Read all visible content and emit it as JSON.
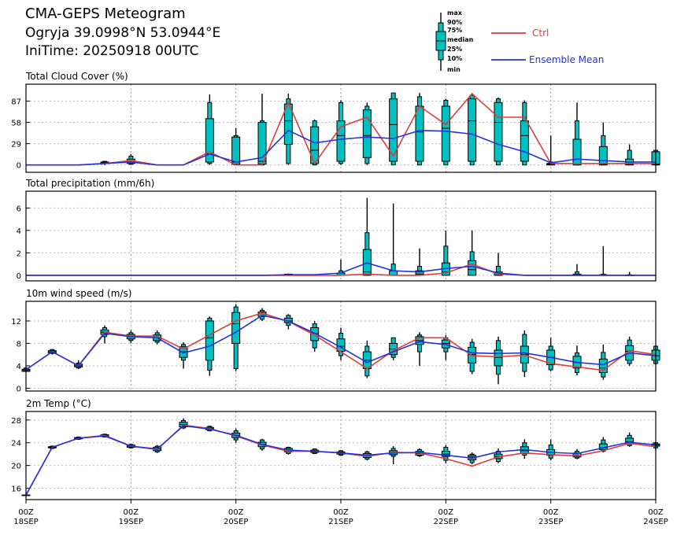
{
  "header": {
    "title": "CMA-GEPS Meteogram",
    "location": "Ogryja 39.0998°N 53.0944°E",
    "init_time": "IniTime: 20250918 00UTC"
  },
  "legend": {
    "box_labels": [
      "max",
      "90%",
      "75%",
      "median",
      "25%",
      "10%",
      "min"
    ],
    "ctrl_label": "Ctrl",
    "mean_label": "Ensemble Mean",
    "ctrl_color": "#e03c3c",
    "mean_color": "#2233dd",
    "box_color": "#00c0c0"
  },
  "x_axis": {
    "tick_hours": [
      0,
      24,
      48,
      72,
      96,
      120,
      144
    ],
    "tick_labels": [
      {
        "top": "00Z",
        "bottom": "18SEP"
      },
      {
        "top": "00Z",
        "bottom": "19SEP"
      },
      {
        "top": "00Z",
        "bottom": "20SEP"
      },
      {
        "top": "00Z",
        "bottom": "21SEP"
      },
      {
        "top": "00Z",
        "bottom": "22SEP"
      },
      {
        "top": "00Z",
        "bottom": "23SEP"
      },
      {
        "top": "00Z",
        "bottom": "24SEP"
      }
    ],
    "range_hours": [
      0,
      144
    ]
  },
  "chart_data": [
    {
      "type": "box",
      "title": "Total Cloud Cover (%)",
      "ylim": [
        -10,
        110
      ],
      "yticks": [
        0,
        29,
        58,
        87
      ],
      "hours": [
        0,
        6,
        12,
        18,
        24,
        30,
        36,
        42,
        48,
        54,
        60,
        66,
        72,
        78,
        84,
        90,
        96,
        102,
        108,
        114,
        120,
        126,
        132,
        138,
        144
      ],
      "boxes": [
        [
          0,
          0,
          0,
          0,
          0,
          0,
          0
        ],
        [
          0,
          0,
          0,
          0,
          0,
          0,
          0
        ],
        [
          0,
          0,
          0,
          0,
          0,
          0,
          0
        ],
        [
          0,
          2,
          2,
          3,
          4,
          5,
          5
        ],
        [
          0,
          1,
          2,
          4,
          8,
          12,
          15
        ],
        [
          0,
          0,
          0,
          0,
          0,
          0,
          0
        ],
        [
          0,
          0,
          0,
          0,
          0,
          0,
          0
        ],
        [
          0,
          2,
          4,
          15,
          63,
          85,
          96
        ],
        [
          0,
          0,
          1,
          4,
          38,
          40,
          50
        ],
        [
          0,
          0,
          1,
          5,
          58,
          60,
          97
        ],
        [
          0,
          2,
          28,
          60,
          83,
          90,
          97
        ],
        [
          0,
          0,
          2,
          20,
          52,
          60,
          62
        ],
        [
          0,
          2,
          5,
          40,
          60,
          85,
          88
        ],
        [
          0,
          2,
          10,
          40,
          75,
          80,
          85
        ],
        [
          0,
          0,
          5,
          55,
          90,
          98,
          98
        ],
        [
          0,
          0,
          5,
          45,
          80,
          93,
          98
        ],
        [
          0,
          0,
          5,
          50,
          80,
          88,
          90
        ],
        [
          0,
          0,
          5,
          60,
          90,
          95,
          98
        ],
        [
          0,
          0,
          5,
          58,
          85,
          90,
          92
        ],
        [
          0,
          0,
          5,
          40,
          60,
          85,
          88
        ],
        [
          0,
          0,
          0,
          1,
          2,
          4,
          40
        ],
        [
          0,
          0,
          0,
          2,
          35,
          60,
          85
        ],
        [
          0,
          0,
          0,
          1,
          25,
          40,
          58
        ],
        [
          0,
          0,
          0,
          1,
          8,
          20,
          28
        ],
        [
          0,
          0,
          0,
          1,
          18,
          20,
          20
        ]
      ],
      "ctrl": [
        0,
        0,
        0,
        2,
        6,
        0,
        0,
        18,
        0,
        0,
        85,
        2,
        52,
        65,
        12,
        80,
        55,
        97,
        65,
        65,
        2,
        2,
        2,
        2,
        2
      ],
      "mean": [
        0,
        0,
        0,
        2,
        4,
        0,
        0,
        15,
        4,
        10,
        47,
        30,
        35,
        38,
        36,
        47,
        46,
        42,
        28,
        18,
        3,
        8,
        6,
        4,
        4
      ]
    },
    {
      "type": "box",
      "title": "Total precipitation (mm/6h)",
      "ylim": [
        -0.5,
        7.5
      ],
      "yticks": [
        0,
        2,
        4,
        6
      ],
      "hours": [
        0,
        6,
        12,
        18,
        24,
        30,
        36,
        42,
        48,
        54,
        60,
        66,
        72,
        78,
        84,
        90,
        96,
        102,
        108,
        114,
        120,
        126,
        132,
        138,
        144
      ],
      "boxes": [
        [
          0,
          0,
          0,
          0,
          0,
          0,
          0
        ],
        [
          0,
          0,
          0,
          0,
          0,
          0,
          0
        ],
        [
          0,
          0,
          0,
          0,
          0,
          0,
          0
        ],
        [
          0,
          0,
          0,
          0,
          0,
          0,
          0
        ],
        [
          0,
          0,
          0,
          0,
          0,
          0,
          0
        ],
        [
          0,
          0,
          0,
          0,
          0,
          0,
          0
        ],
        [
          0,
          0,
          0,
          0,
          0,
          0,
          0
        ],
        [
          0,
          0,
          0,
          0,
          0,
          0,
          0
        ],
        [
          0,
          0,
          0,
          0,
          0,
          0,
          0
        ],
        [
          0,
          0,
          0,
          0,
          0,
          0,
          0
        ],
        [
          0,
          0,
          0,
          0,
          0.1,
          0.1,
          0.15
        ],
        [
          0,
          0,
          0,
          0,
          0.05,
          0.05,
          0.1
        ],
        [
          0,
          0,
          0,
          0,
          0.2,
          0.4,
          1.4
        ],
        [
          0,
          0,
          0,
          0.3,
          2.3,
          3.8,
          6.9
        ],
        [
          0,
          0,
          0,
          0,
          0.4,
          1,
          6.4
        ],
        [
          0,
          0,
          0,
          0.1,
          0.4,
          0.8,
          2.4
        ],
        [
          0,
          0,
          0,
          0.3,
          1.1,
          2.6,
          4
        ],
        [
          0,
          0,
          0,
          0.5,
          1.3,
          2.1,
          4
        ],
        [
          0,
          0,
          0,
          0,
          0.3,
          0.8,
          2
        ],
        [
          0,
          0,
          0,
          0,
          0,
          0,
          0
        ],
        [
          0,
          0,
          0,
          0,
          0,
          0,
          0
        ],
        [
          0,
          0,
          0,
          0,
          0.1,
          0.3,
          1
        ],
        [
          0,
          0,
          0,
          0,
          0.05,
          0.1,
          2.6
        ],
        [
          0,
          0,
          0,
          0,
          0,
          0.05,
          0.3
        ],
        [
          0,
          0,
          0,
          0,
          0,
          0,
          0
        ]
      ],
      "ctrl": [
        0,
        0,
        0,
        0,
        0,
        0,
        0,
        0,
        0,
        0,
        0,
        0,
        0,
        0.1,
        0,
        0,
        0.2,
        1,
        0.1,
        0,
        0,
        0,
        0,
        0,
        0
      ],
      "mean": [
        0,
        0,
        0,
        0,
        0,
        0,
        0,
        0,
        0,
        0,
        0.05,
        0.05,
        0.2,
        1.1,
        0.4,
        0.3,
        0.6,
        0.8,
        0.2,
        0,
        0,
        0,
        0,
        0,
        0
      ]
    },
    {
      "type": "box",
      "title": "10m wind speed (m/s)",
      "ylim": [
        -0.5,
        15.5
      ],
      "yticks": [
        0,
        4,
        8,
        12
      ],
      "hours": [
        0,
        6,
        12,
        18,
        24,
        30,
        36,
        42,
        48,
        54,
        60,
        66,
        72,
        78,
        84,
        90,
        96,
        102,
        108,
        114,
        120,
        126,
        132,
        138,
        144
      ],
      "boxes": [
        [
          3,
          3,
          3,
          3.2,
          3.4,
          3.6,
          3.8
        ],
        [
          6,
          6.2,
          6.3,
          6.5,
          6.7,
          6.9,
          7
        ],
        [
          3.4,
          3.6,
          3.8,
          4,
          4.3,
          4.5,
          5
        ],
        [
          8,
          9.2,
          9.6,
          10,
          10.4,
          10.8,
          11.2
        ],
        [
          8,
          8.5,
          8.8,
          9.2,
          9.6,
          9.9,
          10.3
        ],
        [
          7.8,
          8.2,
          8.5,
          9,
          9.5,
          9.9,
          10.3
        ],
        [
          3.5,
          5,
          5.5,
          6.5,
          7.4,
          7.8,
          8.2
        ],
        [
          2.2,
          3.2,
          5,
          9,
          12,
          12.5,
          12.8
        ],
        [
          3,
          3.5,
          8,
          11.5,
          13.5,
          14.5,
          15
        ],
        [
          12,
          12.3,
          12.8,
          13.3,
          13.6,
          13.9,
          14.3
        ],
        [
          10.5,
          11.2,
          11.7,
          12,
          12.5,
          13,
          13.2
        ],
        [
          6.5,
          7.2,
          8.5,
          9.8,
          10.8,
          11.5,
          12
        ],
        [
          5,
          5.8,
          6.6,
          7.5,
          8.8,
          9.8,
          10.8
        ],
        [
          1.8,
          2.2,
          3.5,
          5,
          6.5,
          7.5,
          8.5
        ],
        [
          5,
          5.5,
          6,
          7,
          8,
          9,
          9
        ],
        [
          4,
          6.5,
          7.8,
          8.5,
          9.2,
          9.5,
          10
        ],
        [
          5,
          6.5,
          7.2,
          8,
          8.6,
          9,
          9.5
        ],
        [
          2.5,
          3,
          4.5,
          6,
          7.3,
          8.2,
          8.8
        ],
        [
          0.7,
          2.5,
          4,
          5.5,
          6.8,
          8.5,
          9.2
        ],
        [
          2,
          3,
          4.5,
          6,
          7.5,
          9.6,
          10.3
        ],
        [
          3,
          3.3,
          4.2,
          5.5,
          6.8,
          7.5,
          9
        ],
        [
          2.3,
          2.8,
          3.6,
          4.6,
          5.7,
          6.3,
          7.6
        ],
        [
          1.5,
          2,
          2.8,
          3.6,
          5.2,
          6.4,
          7.8
        ],
        [
          4,
          4.4,
          5,
          6.6,
          7.6,
          8.6,
          9.2
        ],
        [
          4.2,
          4.4,
          5,
          5.8,
          6.8,
          7.5,
          7.5
        ]
      ],
      "ctrl": [
        3.3,
        6.5,
        4,
        10,
        9.3,
        9.3,
        7,
        9.5,
        12,
        13.4,
        11.9,
        9.5,
        6.5,
        3.5,
        6.7,
        9,
        9,
        5.8,
        5.6,
        5.9,
        4.4,
        3.8,
        3.2,
        6.7,
        6
      ],
      "mean": [
        3.3,
        6.5,
        4,
        9.8,
        9.2,
        9,
        6.3,
        7.5,
        10,
        13,
        12,
        9.8,
        7.3,
        4.6,
        6.5,
        8.3,
        7.8,
        6.3,
        6.2,
        6.3,
        5.5,
        4.6,
        4.2,
        6.3,
        5.8
      ]
    },
    {
      "type": "box",
      "title": "2m Temp (°C)",
      "ylim": [
        14,
        29.5
      ],
      "yticks": [
        16,
        20,
        24,
        28
      ],
      "hours": [
        0,
        6,
        12,
        18,
        24,
        30,
        36,
        42,
        48,
        54,
        60,
        66,
        72,
        78,
        84,
        90,
        96,
        102,
        108,
        114,
        120,
        126,
        132,
        138,
        144
      ],
      "boxes": [
        [
          14.7,
          14.7,
          14.7,
          14.8,
          14.8,
          14.8,
          14.8
        ],
        [
          22.9,
          23,
          23.1,
          23.2,
          23.3,
          23.4,
          23.5
        ],
        [
          24.5,
          24.6,
          24.7,
          24.8,
          24.9,
          25,
          25.1
        ],
        [
          24.9,
          25,
          25.1,
          25.3,
          25.4,
          25.5,
          25.6
        ],
        [
          23,
          23.1,
          23.2,
          23.4,
          23.6,
          23.7,
          23.8
        ],
        [
          22.2,
          22.4,
          22.6,
          22.9,
          23.2,
          23.4,
          23.6
        ],
        [
          26.4,
          26.6,
          26.8,
          27.2,
          27.6,
          27.9,
          28.3
        ],
        [
          26,
          26.1,
          26.3,
          26.5,
          26.7,
          26.9,
          27
        ],
        [
          24,
          24.5,
          24.9,
          25.3,
          25.7,
          26.1,
          26.5
        ],
        [
          22.6,
          22.9,
          23.3,
          23.7,
          24.1,
          24.5,
          24.7
        ],
        [
          21.9,
          22.1,
          22.4,
          22.7,
          23,
          23.2,
          23.3
        ],
        [
          22,
          22.1,
          22.3,
          22.5,
          22.7,
          22.9,
          23
        ],
        [
          21.7,
          21.8,
          22,
          22.2,
          22.4,
          22.6,
          22.7
        ],
        [
          20.9,
          21.1,
          21.4,
          21.7,
          22.1,
          22.4,
          22.6
        ],
        [
          20.2,
          21.6,
          21.9,
          22.3,
          22.6,
          23,
          23.4
        ],
        [
          21.5,
          21.7,
          21.8,
          22.1,
          22.5,
          22.8,
          23
        ],
        [
          20.4,
          20.9,
          21.6,
          22,
          22.5,
          23.2,
          23.6
        ],
        [
          20.2,
          20.5,
          21,
          21.5,
          21.8,
          22,
          22.3
        ],
        [
          20.4,
          20.7,
          21.2,
          21.6,
          22,
          22.5,
          23
        ],
        [
          21.2,
          21.8,
          22.1,
          22.6,
          23.3,
          24,
          24.6
        ],
        [
          20.9,
          21.3,
          21.8,
          22.3,
          22.8,
          23.6,
          24.6
        ],
        [
          21.1,
          21.3,
          21.5,
          21.8,
          22.2,
          22.5,
          22.9
        ],
        [
          22.3,
          22.5,
          22.8,
          23.1,
          23.8,
          24.5,
          25
        ],
        [
          23.3,
          23.5,
          23.8,
          24.2,
          24.8,
          25.3,
          25.8
        ],
        [
          22.7,
          23.1,
          23.4,
          23.6,
          23.8,
          24,
          24.2
        ]
      ],
      "ctrl": [
        14.8,
        23.2,
        24.8,
        25.3,
        23.4,
        22.8,
        27.1,
        26.5,
        25.2,
        23.6,
        22.5,
        22.5,
        22.2,
        21.6,
        22.3,
        22.2,
        21.2,
        19.9,
        21.5,
        22.2,
        21.9,
        21.7,
        22.6,
        23.9,
        23.3
      ],
      "mean": [
        14.8,
        23.2,
        24.8,
        25.2,
        23.4,
        22.9,
        27,
        26.4,
        25.3,
        23.7,
        22.7,
        22.5,
        22.2,
        21.8,
        22.2,
        22.3,
        21.8,
        21.3,
        22.4,
        22.8,
        22.3,
        22.1,
        23.1,
        24.1,
        23.6
      ]
    }
  ]
}
